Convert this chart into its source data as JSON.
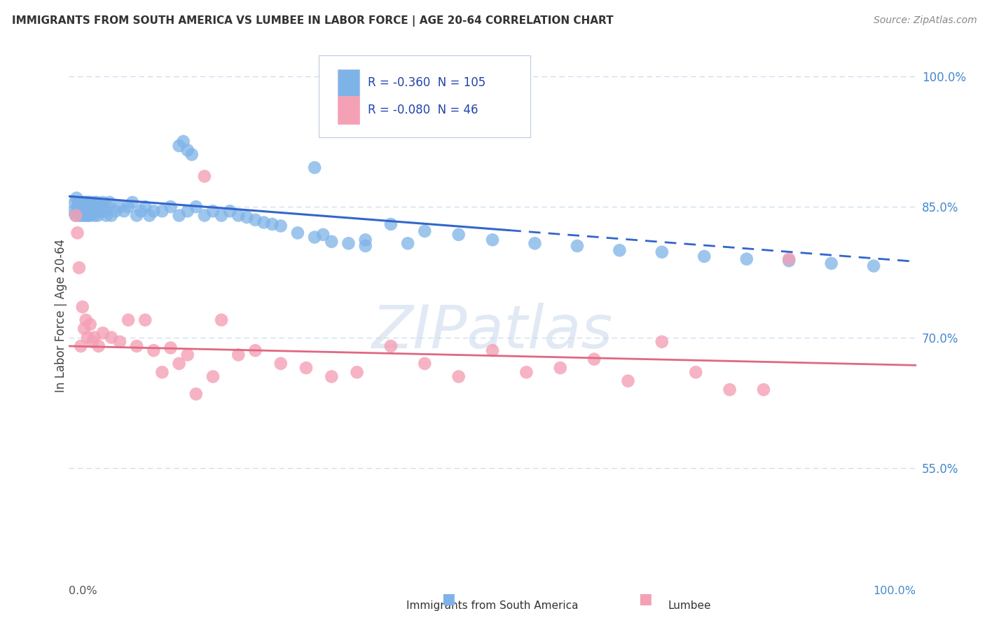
{
  "title": "IMMIGRANTS FROM SOUTH AMERICA VS LUMBEE IN LABOR FORCE | AGE 20-64 CORRELATION CHART",
  "source": "Source: ZipAtlas.com",
  "ylabel": "In Labor Force | Age 20-64",
  "y_ticks_right": [
    0.55,
    0.7,
    0.85,
    1.0
  ],
  "y_tick_labels_right": [
    "55.0%",
    "70.0%",
    "85.0%",
    "100.0%"
  ],
  "x_range": [
    0.0,
    1.0
  ],
  "y_range": [
    0.42,
    1.03
  ],
  "blue_R": "-0.360",
  "blue_N": "105",
  "pink_R": "-0.080",
  "pink_N": "46",
  "blue_color": "#7EB3E8",
  "pink_color": "#F4A0B5",
  "blue_line_color": "#3366CC",
  "pink_line_color": "#E06880",
  "blue_line_solid_end": 0.52,
  "blue_intercept": 0.862,
  "blue_slope": -0.075,
  "pink_intercept": 0.69,
  "pink_slope": -0.022,
  "legend_label_blue": "Immigrants from South America",
  "legend_label_pink": "Lumbee",
  "watermark_text": "ZIPatlas",
  "background_color": "#ffffff",
  "grid_color": "#CCDDEE",
  "right_tick_color": "#4488CC",
  "title_color": "#333333",
  "source_color": "#888888",
  "blue_x": [
    0.005,
    0.007,
    0.008,
    0.009,
    0.01,
    0.01,
    0.011,
    0.012,
    0.012,
    0.013,
    0.013,
    0.014,
    0.015,
    0.015,
    0.016,
    0.016,
    0.017,
    0.017,
    0.018,
    0.018,
    0.019,
    0.019,
    0.02,
    0.02,
    0.021,
    0.021,
    0.022,
    0.022,
    0.023,
    0.023,
    0.024,
    0.024,
    0.025,
    0.025,
    0.026,
    0.026,
    0.027,
    0.028,
    0.029,
    0.03,
    0.03,
    0.031,
    0.032,
    0.033,
    0.034,
    0.035,
    0.036,
    0.038,
    0.04,
    0.042,
    0.044,
    0.046,
    0.048,
    0.05,
    0.055,
    0.06,
    0.065,
    0.07,
    0.075,
    0.08,
    0.085,
    0.09,
    0.095,
    0.1,
    0.11,
    0.12,
    0.13,
    0.14,
    0.15,
    0.16,
    0.17,
    0.18,
    0.19,
    0.2,
    0.21,
    0.22,
    0.23,
    0.24,
    0.25,
    0.27,
    0.29,
    0.31,
    0.33,
    0.35,
    0.13,
    0.135,
    0.14,
    0.145,
    0.29,
    0.38,
    0.42,
    0.46,
    0.5,
    0.55,
    0.6,
    0.65,
    0.7,
    0.75,
    0.8,
    0.85,
    0.9,
    0.95,
    0.3,
    0.35,
    0.4
  ],
  "blue_y": [
    0.845,
    0.855,
    0.84,
    0.86,
    0.85,
    0.845,
    0.855,
    0.85,
    0.84,
    0.855,
    0.845,
    0.85,
    0.855,
    0.84,
    0.85,
    0.855,
    0.845,
    0.855,
    0.85,
    0.84,
    0.855,
    0.845,
    0.85,
    0.845,
    0.855,
    0.84,
    0.85,
    0.855,
    0.845,
    0.84,
    0.85,
    0.855,
    0.84,
    0.85,
    0.845,
    0.855,
    0.85,
    0.845,
    0.85,
    0.855,
    0.84,
    0.845,
    0.85,
    0.855,
    0.84,
    0.85,
    0.845,
    0.85,
    0.855,
    0.845,
    0.84,
    0.85,
    0.855,
    0.84,
    0.845,
    0.85,
    0.845,
    0.85,
    0.855,
    0.84,
    0.845,
    0.85,
    0.84,
    0.845,
    0.845,
    0.85,
    0.84,
    0.845,
    0.85,
    0.84,
    0.845,
    0.84,
    0.845,
    0.84,
    0.838,
    0.835,
    0.832,
    0.83,
    0.828,
    0.82,
    0.815,
    0.81,
    0.808,
    0.805,
    0.92,
    0.925,
    0.915,
    0.91,
    0.895,
    0.83,
    0.822,
    0.818,
    0.812,
    0.808,
    0.805,
    0.8,
    0.798,
    0.793,
    0.79,
    0.788,
    0.785,
    0.782,
    0.818,
    0.812,
    0.808
  ],
  "pink_x": [
    0.008,
    0.01,
    0.012,
    0.014,
    0.016,
    0.018,
    0.02,
    0.022,
    0.025,
    0.028,
    0.03,
    0.035,
    0.04,
    0.05,
    0.06,
    0.08,
    0.1,
    0.12,
    0.14,
    0.16,
    0.18,
    0.2,
    0.22,
    0.25,
    0.28,
    0.31,
    0.34,
    0.38,
    0.42,
    0.46,
    0.5,
    0.54,
    0.58,
    0.62,
    0.66,
    0.7,
    0.74,
    0.78,
    0.82,
    0.85,
    0.07,
    0.09,
    0.11,
    0.13,
    0.15,
    0.17
  ],
  "pink_y": [
    0.84,
    0.82,
    0.78,
    0.69,
    0.735,
    0.71,
    0.72,
    0.7,
    0.715,
    0.695,
    0.7,
    0.69,
    0.705,
    0.7,
    0.695,
    0.69,
    0.685,
    0.688,
    0.68,
    0.885,
    0.72,
    0.68,
    0.685,
    0.67,
    0.665,
    0.655,
    0.66,
    0.69,
    0.67,
    0.655,
    0.685,
    0.66,
    0.665,
    0.675,
    0.65,
    0.695,
    0.66,
    0.64,
    0.64,
    0.79,
    0.72,
    0.72,
    0.66,
    0.67,
    0.635,
    0.655
  ]
}
